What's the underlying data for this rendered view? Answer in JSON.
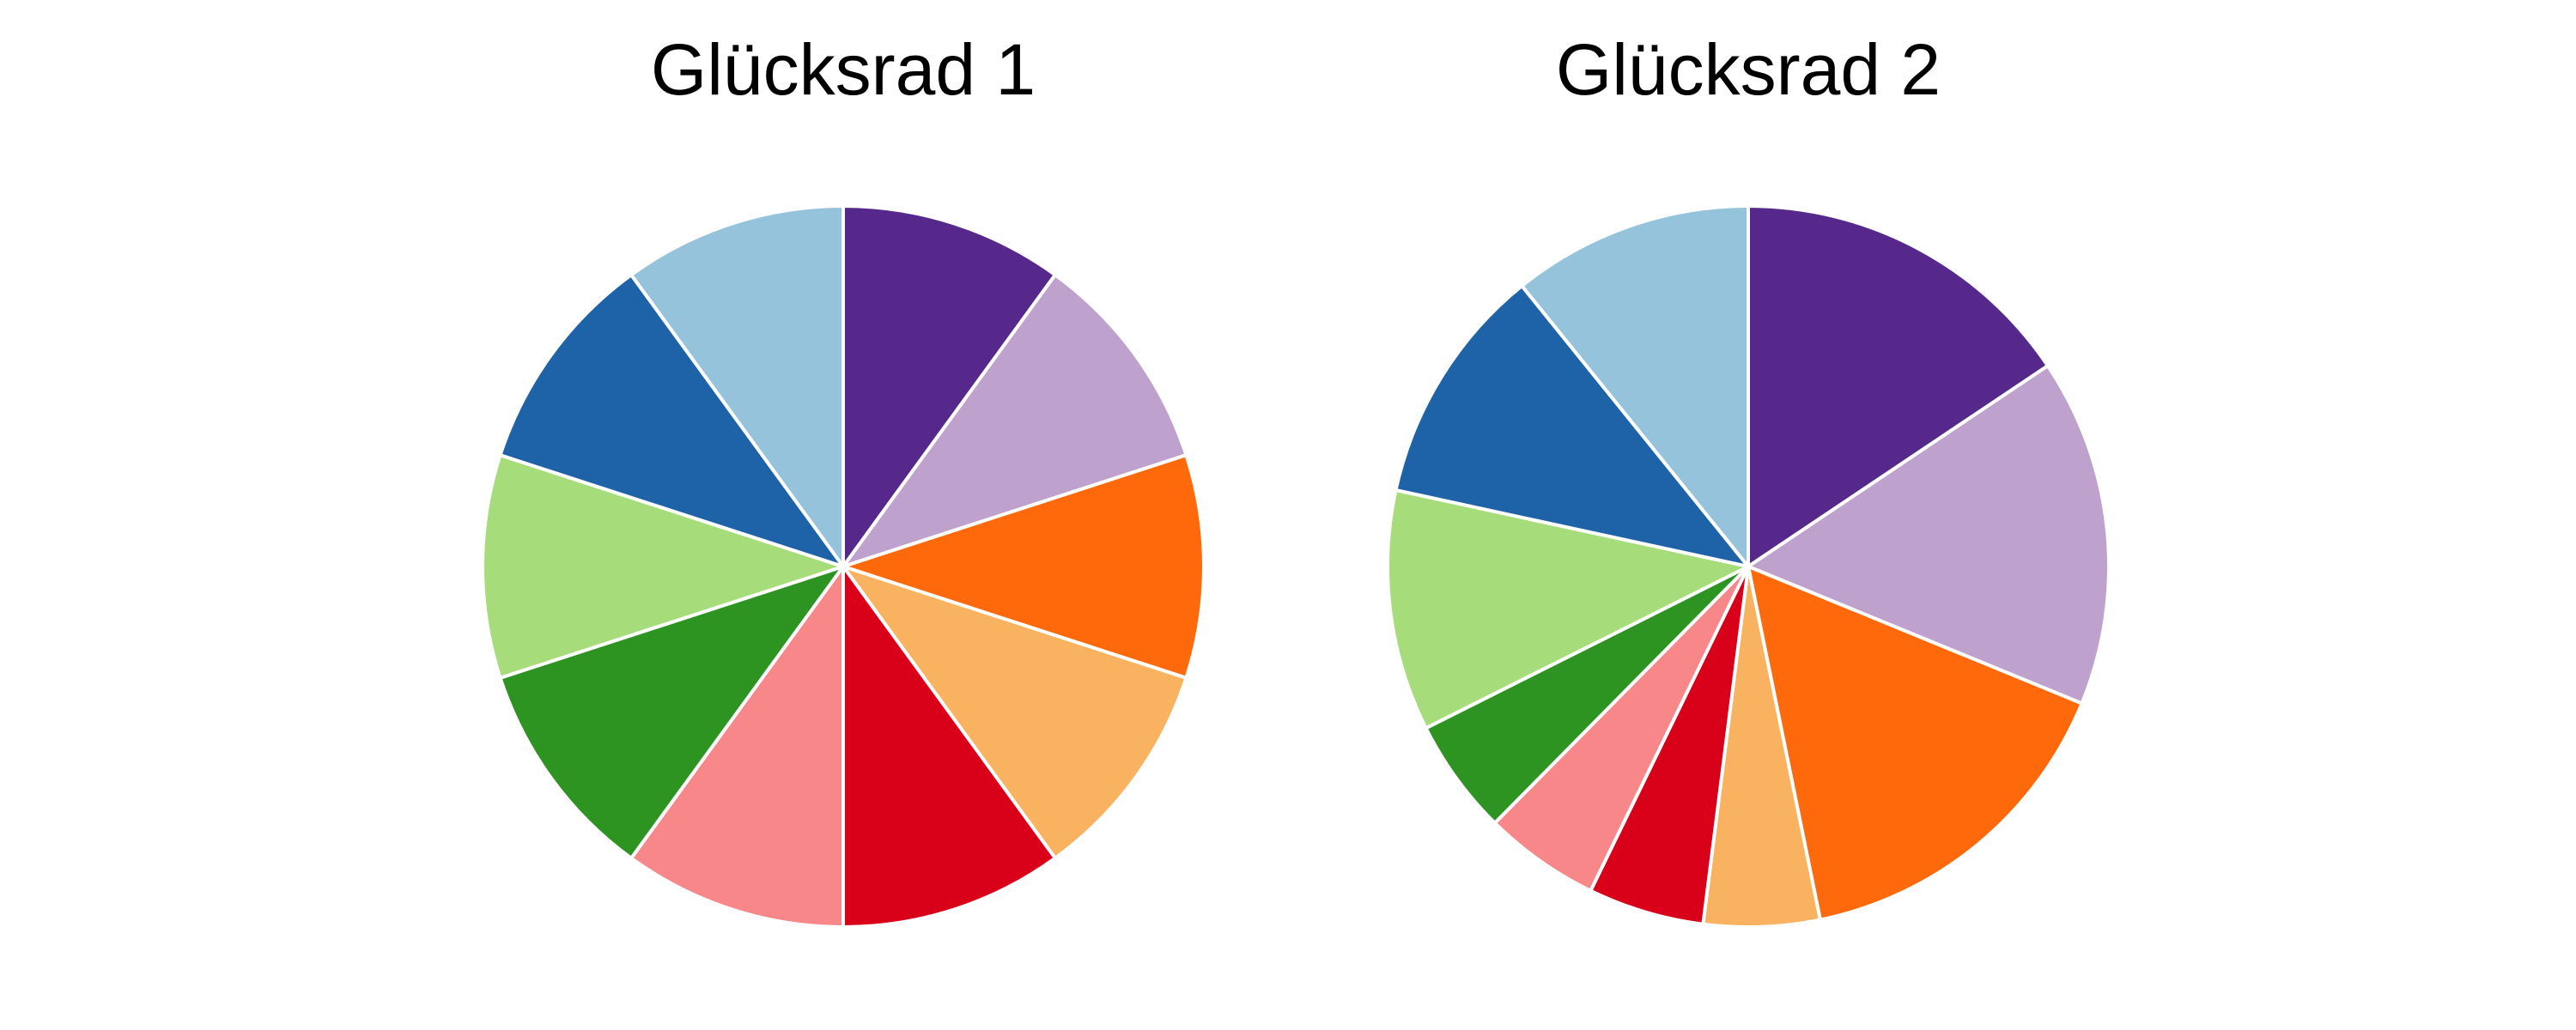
{
  "chart_data": [
    {
      "type": "pie",
      "title": "Glücksrad 1",
      "start": "12 o'clock",
      "direction": "clockwise",
      "slice_border_color": "#ffffff",
      "values": [
        10,
        10,
        10,
        10,
        10,
        10,
        10,
        10,
        10,
        10
      ],
      "colors": [
        "#56288b",
        "#bea1cc",
        "#fd690b",
        "#f9b25f",
        "#d9011a",
        "#f78788",
        "#2d9321",
        "#a6dc7a",
        "#1e63a7",
        "#96c3dc"
      ]
    },
    {
      "type": "pie",
      "title": "Glücksrad 2",
      "start": "12 o'clock",
      "direction": "clockwise",
      "slice_border_color": "#ffffff",
      "values": [
        15.6,
        15.6,
        15.6,
        5.2,
        5.2,
        5.2,
        5.2,
        10.8,
        10.8,
        10.8
      ],
      "colors": [
        "#56288b",
        "#bea1cc",
        "#fd690b",
        "#f9b25f",
        "#d9011a",
        "#f78788",
        "#2d9321",
        "#a6dc7a",
        "#1e63a7",
        "#96c3dc"
      ]
    }
  ]
}
